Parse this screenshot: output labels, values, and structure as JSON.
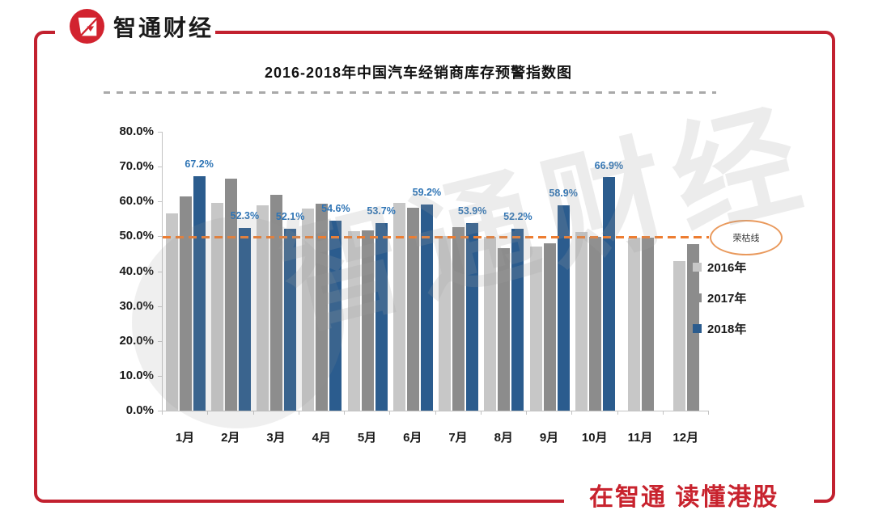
{
  "header": {
    "logo_text": "智通财经"
  },
  "footer": {
    "slogan": "在智通  读懂港股"
  },
  "watermark": {
    "text": "智通财经"
  },
  "theme": {
    "frame_red": "#c2212f",
    "slogan_red": "#c8232e",
    "logo_red": "#d2232f",
    "reference_orange": "#ed7d31",
    "label_blue": "#2e74b5"
  },
  "chart_data": {
    "type": "bar",
    "title": "2016-2018年中国汽车经销商库存预警指数图",
    "categories": [
      "1月",
      "2月",
      "3月",
      "4月",
      "5月",
      "6月",
      "7月",
      "8月",
      "9月",
      "10月",
      "11月",
      "12月"
    ],
    "series": [
      {
        "name": "2016年",
        "color": "#c7c7c7",
        "values": [
          56.6,
          59.5,
          58.9,
          57.9,
          51.4,
          59.7,
          50.1,
          49.9,
          47.0,
          51.2,
          49.7,
          42.9
        ]
      },
      {
        "name": "2017年",
        "color": "#8c8c8c",
        "values": [
          61.5,
          66.6,
          61.9,
          59.3,
          51.8,
          58.2,
          52.7,
          46.6,
          47.9,
          49.9,
          49.6,
          47.7
        ]
      },
      {
        "name": "2018年",
        "color": "#2b5c8e",
        "values": [
          67.2,
          52.3,
          52.1,
          54.6,
          53.7,
          59.2,
          53.9,
          52.2,
          58.9,
          66.9,
          null,
          null
        ],
        "labels": [
          "67.2%",
          "52.3%",
          "52.1%",
          "54.6%",
          "53.7%",
          "59.2%",
          "53.9%",
          "52.2%",
          "58.9%",
          "66.9%",
          "",
          ""
        ]
      }
    ],
    "xlabel": "",
    "ylabel": "",
    "ylim": [
      0,
      80
    ],
    "yticks": [
      "0.0%",
      "10.0%",
      "20.0%",
      "30.0%",
      "40.0%",
      "50.0%",
      "60.0%",
      "70.0%",
      "80.0%"
    ],
    "grid": false,
    "legend_position": "right",
    "reference_line": {
      "value": 50,
      "label": "荣枯线",
      "color": "#ed7d31"
    }
  }
}
